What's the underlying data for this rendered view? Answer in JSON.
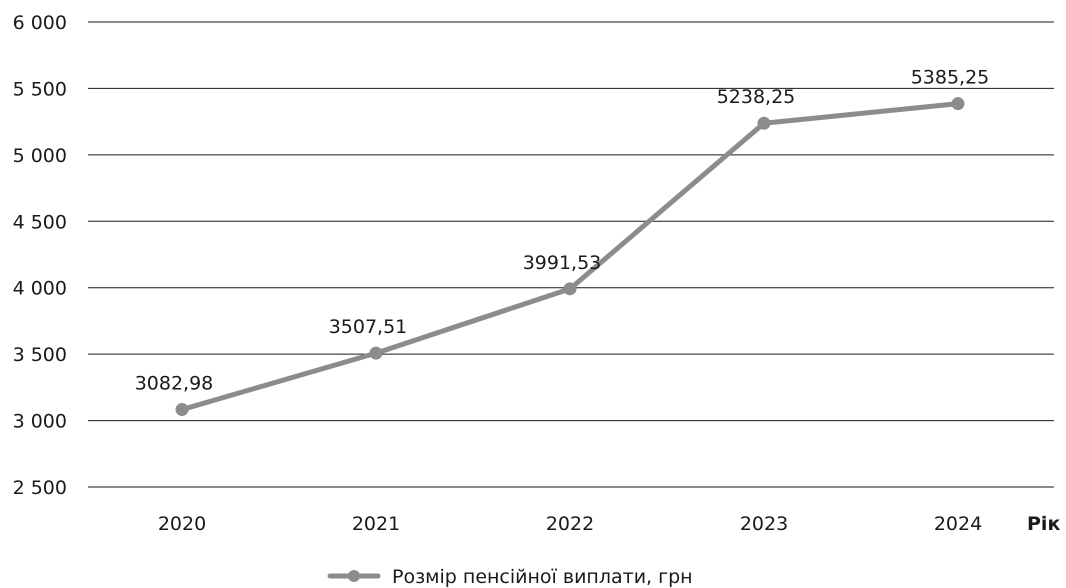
{
  "chart_data": {
    "type": "line",
    "x": [
      "2020",
      "2021",
      "2022",
      "2023",
      "2024"
    ],
    "series": [
      {
        "name": "Розмір пенсійної виплати, грн",
        "values": [
          3082.98,
          3507.51,
          3991.53,
          5238.25,
          5385.25
        ],
        "labels": [
          "3082,98",
          "3507,51",
          "3991,53",
          "5238,25",
          "5385,25"
        ],
        "color": "#8c8c8c"
      }
    ],
    "y_ticks": [
      2500,
      3000,
      3500,
      4000,
      4500,
      5000,
      5500,
      6000
    ],
    "y_tick_labels": [
      "2 500",
      "3 000",
      "3 500",
      "4 000",
      "4 500",
      "5 000",
      "5 500",
      "6 000"
    ],
    "ylim": [
      2500,
      6000
    ],
    "xlabel": "Рік",
    "ylabel": "",
    "title": "",
    "grid": true,
    "legend_position": "bottom",
    "gridline_color": "#1a1a1a"
  }
}
